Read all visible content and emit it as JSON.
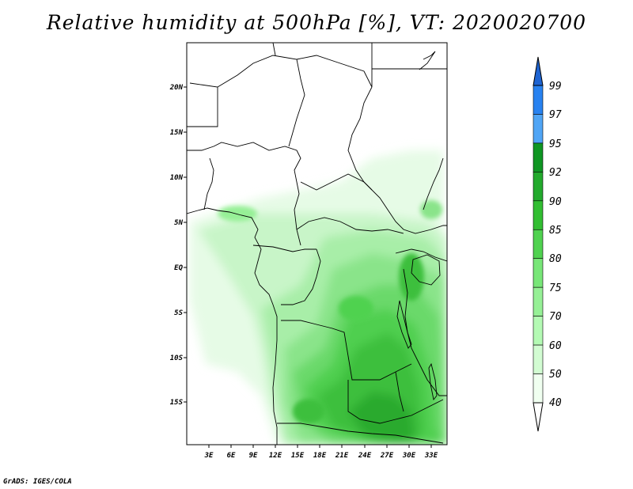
{
  "title": "Relative humidity at 500hPa [%], VT: 2020020700",
  "credit": "GrADS: IGES/COLA",
  "axes": {
    "lat_labels": [
      "20N",
      "15N",
      "10N",
      "5N",
      "EQ",
      "5S",
      "10S",
      "15S"
    ],
    "lon_labels": [
      "3E",
      "6E",
      "9E",
      "12E",
      "15E",
      "18E",
      "21E",
      "24E",
      "27E",
      "30E",
      "33E"
    ]
  },
  "colorbar": {
    "labels": [
      "99",
      "97",
      "95",
      "92",
      "90",
      "85",
      "80",
      "75",
      "70",
      "60",
      "50",
      "40"
    ],
    "colors": [
      "#1e64d2",
      "#2882f0",
      "#50a5f5",
      "#0f9623",
      "#23aa2d",
      "#32be32",
      "#50d250",
      "#78e678",
      "#96f096",
      "#b4fab4",
      "#d2fcd2",
      "#f0fff0"
    ]
  },
  "colors": {
    "land_outline": "#000000",
    "frame": "#000000",
    "background": "#ffffff"
  }
}
